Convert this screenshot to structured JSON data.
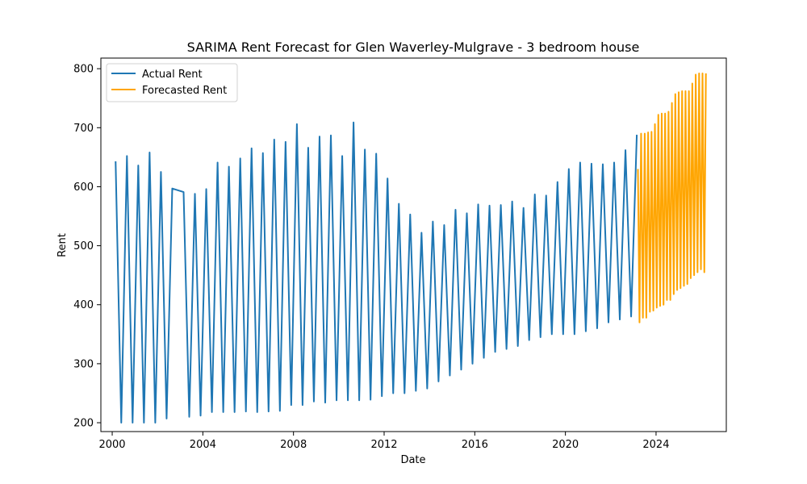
{
  "chart_data": {
    "type": "line",
    "title": "SARIMA Rent Forecast for Glen Waverley-Mulgrave - 3 bedroom house",
    "xlabel": "Date",
    "ylabel": "Rent",
    "xlim": [
      1999.5,
      2027.1
    ],
    "ylim": [
      185,
      818
    ],
    "x_ticks": [
      2000,
      2004,
      2008,
      2012,
      2016,
      2020,
      2024
    ],
    "x_tick_labels": [
      "2000",
      "2004",
      "2008",
      "2012",
      "2016",
      "2020",
      "2024"
    ],
    "y_ticks": [
      200,
      300,
      400,
      500,
      600,
      700,
      800
    ],
    "y_tick_labels": [
      "200",
      "300",
      "400",
      "500",
      "600",
      "700",
      "800"
    ],
    "grid": false,
    "legend_position": "top-left",
    "series": [
      {
        "name": "Actual Rent",
        "color": "#1f77b4",
        "x": [
          2000.15,
          2000.4,
          2000.65,
          2000.9,
          2001.15,
          2001.4,
          2001.65,
          2001.9,
          2002.15,
          2002.4,
          2002.65,
          2003.15,
          2003.4,
          2003.65,
          2003.9,
          2004.15,
          2004.4,
          2004.65,
          2004.9,
          2005.15,
          2005.4,
          2005.65,
          2005.9,
          2006.15,
          2006.4,
          2006.65,
          2006.9,
          2007.15,
          2007.4,
          2007.65,
          2007.9,
          2008.15,
          2008.4,
          2008.65,
          2008.9,
          2009.15,
          2009.4,
          2009.65,
          2009.9,
          2010.15,
          2010.4,
          2010.65,
          2010.9,
          2011.15,
          2011.4,
          2011.65,
          2011.9,
          2012.15,
          2012.4,
          2012.65,
          2012.9,
          2013.15,
          2013.4,
          2013.65,
          2013.9,
          2014.15,
          2014.4,
          2014.65,
          2014.9,
          2015.15,
          2015.4,
          2015.65,
          2015.9,
          2016.15,
          2016.4,
          2016.65,
          2016.9,
          2017.15,
          2017.4,
          2017.65,
          2017.9,
          2018.15,
          2018.4,
          2018.65,
          2018.9,
          2019.15,
          2019.4,
          2019.65,
          2019.9,
          2020.15,
          2020.4,
          2020.65,
          2020.9,
          2021.15,
          2021.4,
          2021.65,
          2021.9,
          2022.15,
          2022.4,
          2022.65,
          2022.9,
          2023.15
        ],
        "values": [
          643,
          200,
          652,
          200,
          636,
          200,
          658,
          200,
          625,
          207,
          597,
          591,
          210,
          588,
          212,
          596,
          218,
          641,
          218,
          634,
          218,
          648,
          219,
          665,
          218,
          657,
          219,
          680,
          220,
          676,
          230,
          706,
          230,
          666,
          236,
          685,
          234,
          687,
          238,
          652,
          238,
          709,
          238,
          663,
          239,
          656,
          245,
          614,
          250,
          571,
          250,
          553,
          254,
          522,
          258,
          541,
          270,
          535,
          280,
          561,
          290,
          555,
          300,
          570,
          310,
          568,
          320,
          569,
          325,
          575,
          330,
          564,
          340,
          587,
          345,
          585,
          350,
          608,
          350,
          630,
          350,
          641,
          355,
          639,
          360,
          638,
          370,
          641,
          375,
          662,
          380,
          688
        ]
      },
      {
        "name": "Forecasted Rent",
        "color": "#ffa500",
        "x": [
          2023.2,
          2023.27,
          2023.34,
          2023.42,
          2023.5,
          2023.57,
          2023.65,
          2023.73,
          2023.8,
          2023.88,
          2023.95,
          2024.03,
          2024.1,
          2024.18,
          2024.25,
          2024.33,
          2024.4,
          2024.48,
          2024.55,
          2024.63,
          2024.7,
          2024.78,
          2024.85,
          2024.93,
          2025.0,
          2025.08,
          2025.15,
          2025.23,
          2025.3,
          2025.38,
          2025.45,
          2025.53,
          2025.6,
          2025.68,
          2025.75,
          2025.83,
          2025.9,
          2025.98,
          2026.05,
          2026.13,
          2026.2
        ],
        "values": [
          630,
          370,
          690,
          378,
          690,
          378,
          692,
          388,
          693,
          390,
          706,
          395,
          722,
          398,
          724,
          400,
          724,
          408,
          727,
          408,
          742,
          418,
          757,
          425,
          760,
          428,
          762,
          432,
          762,
          435,
          762,
          445,
          775,
          450,
          790,
          455,
          792,
          460,
          792,
          455,
          792
        ]
      }
    ]
  }
}
